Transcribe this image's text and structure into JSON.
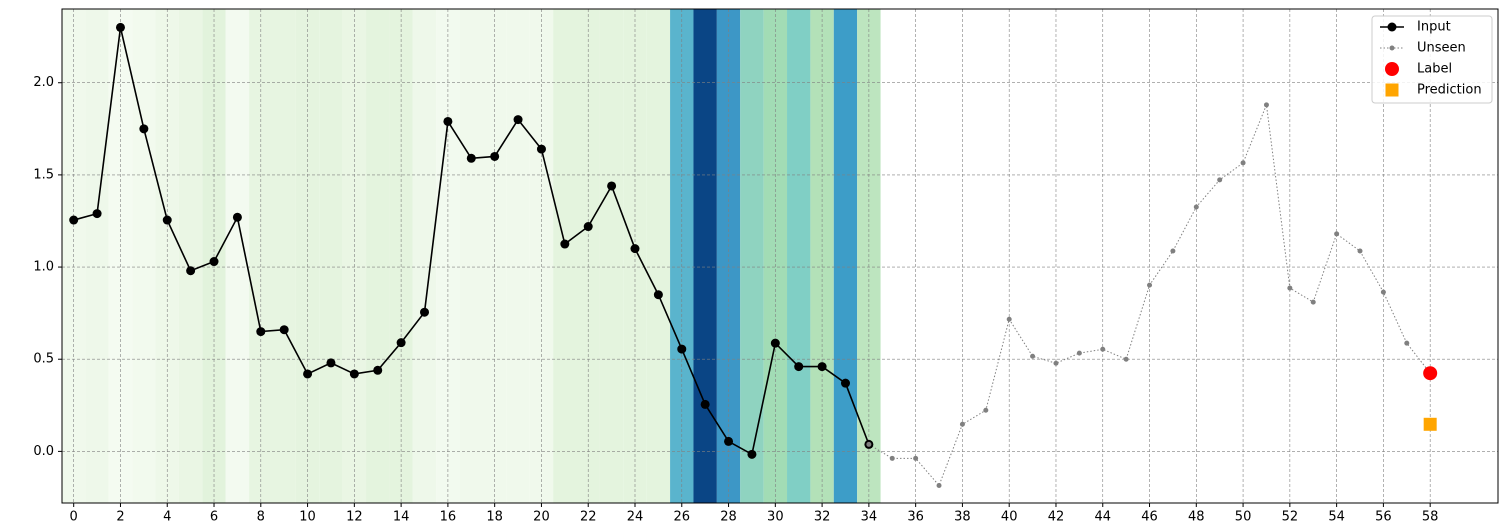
{
  "chart_data": {
    "type": "line",
    "xlim": [
      -0.5,
      60.9
    ],
    "ylim": [
      -0.28,
      2.4
    ],
    "xticks": [
      0,
      2,
      4,
      6,
      8,
      10,
      12,
      14,
      16,
      18,
      20,
      22,
      24,
      26,
      28,
      30,
      32,
      34,
      36,
      38,
      40,
      42,
      44,
      46,
      48,
      50,
      52,
      54,
      56,
      58
    ],
    "yticks": [
      {
        "value": 0,
        "label": "0.0"
      },
      0.5,
      {
        "value": 1,
        "label": "1.0"
      },
      1.5,
      {
        "value": 2,
        "label": "2.0"
      }
    ],
    "grid": true,
    "legend": "upper right",
    "band_colors": [
      "#f0f9ec",
      "#eef8ea",
      "#f4fbf1",
      "#f2faee",
      "#eef8e9",
      "#eaf6e4",
      "#e2f3dc",
      "#f3faf0",
      "#e7f5e1",
      "#e7f5e1",
      "#e5f4df",
      "#e5f4df",
      "#eaf6e4",
      "#e4f4de",
      "#e4f4de",
      "#eef8ea",
      "#f2faef",
      "#f0f9ec",
      "#f0f9ec",
      "#f0f9ec",
      "#f0f9ec",
      "#e4f4de",
      "#e4f4de",
      "#e4f4de",
      "#e4f4de",
      "#e4f4de",
      "#5ab4cd",
      "#0a4585",
      "#3d97c6",
      "#8fd3c0",
      "#a2dcb5",
      "#80cfc5",
      "#b3e1b8",
      "#3d9dc8",
      "#bde5bf"
    ],
    "series": [
      {
        "name": "Input",
        "color": "#000000",
        "line": "solid",
        "marker": "circle",
        "marker_size": 4.5,
        "x": [
          0,
          1,
          2,
          3,
          4,
          5,
          6,
          7,
          8,
          9,
          10,
          11,
          12,
          13,
          14,
          15,
          16,
          17,
          18,
          19,
          20,
          21,
          22,
          23,
          24,
          25,
          26,
          27,
          28,
          29,
          30,
          31,
          32,
          33,
          34
        ],
        "values": [
          1.255,
          1.29,
          2.3,
          1.75,
          1.255,
          0.98,
          1.03,
          1.27,
          0.65,
          0.66,
          0.42,
          0.48,
          0.42,
          0.44,
          0.59,
          0.755,
          1.79,
          1.59,
          1.6,
          1.8,
          1.64,
          1.125,
          1.22,
          1.44,
          1.1,
          0.85,
          0.555,
          0.255,
          0.054,
          -0.016,
          0.587,
          0.46,
          0.46,
          0.37,
          0.038
        ]
      },
      {
        "name": "Unseen",
        "color": "#808080",
        "line": "dotted",
        "marker": "circle",
        "marker_size": 2.5,
        "x": [
          34,
          35,
          36,
          37,
          38,
          39,
          40,
          41,
          42,
          43,
          44,
          45,
          46,
          47,
          48,
          49,
          50,
          51,
          52,
          53,
          54,
          55,
          56,
          57,
          58
        ],
        "values": [
          0.038,
          -0.038,
          -0.038,
          -0.185,
          0.147,
          0.223,
          0.717,
          0.516,
          0.478,
          0.533,
          0.554,
          0.5,
          0.902,
          1.087,
          1.326,
          1.473,
          1.565,
          1.88,
          0.886,
          0.81,
          1.18,
          1.087,
          0.864,
          0.587,
          0.424
        ]
      },
      {
        "name": "Label",
        "color": "#ff0000",
        "line": "none",
        "marker": "circle",
        "marker_size": 7,
        "x": [
          58
        ],
        "values": [
          0.424
        ]
      },
      {
        "name": "Prediction",
        "color": "#ffa500",
        "line": "none",
        "marker": "square",
        "marker_size": 6.5,
        "x": [
          58
        ],
        "values": [
          0.147
        ]
      }
    ]
  }
}
